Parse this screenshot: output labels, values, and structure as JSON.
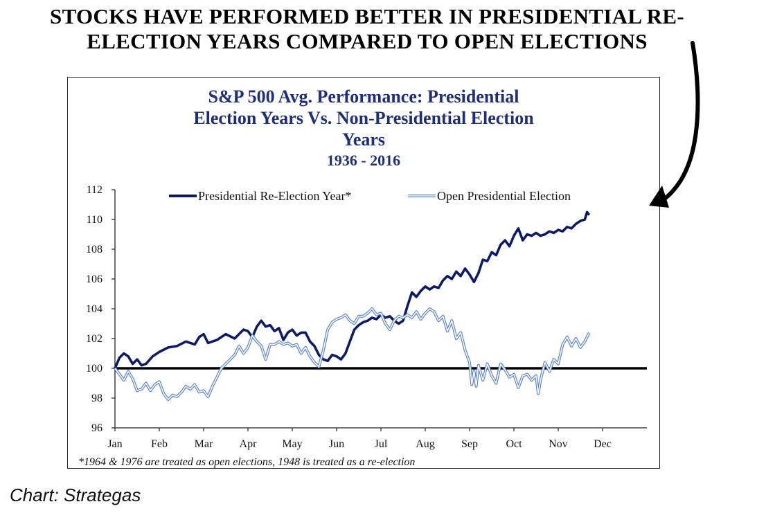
{
  "headline": {
    "line1": "STOCKS HAVE PERFORMED BETTER IN PRESIDENTIAL RE-",
    "line2": "ELECTION YEARS COMPARED TO OPEN ELECTIONS"
  },
  "source": "Chart: Strategas",
  "colors": {
    "reelection": "#0d1a66",
    "open": "#5a82d6",
    "baseline": "#000000",
    "title": "#1f2e78"
  },
  "chart_data": {
    "type": "line",
    "title_lines": [
      "S&P 500 Avg. Performance: Presidential",
      "Election Years Vs. Non-Presidential Election",
      "Years"
    ],
    "subtitle": "1936 - 2016",
    "footnote": "*1964 & 1976 are treated as open elections, 1948 is treated as a re-election",
    "xlabel": "",
    "ylabel": "",
    "ylim": [
      96,
      112
    ],
    "yticks": [
      96,
      98,
      100,
      102,
      104,
      106,
      108,
      110,
      112
    ],
    "xlim": [
      0,
      12
    ],
    "x_tick_labels": [
      "Jan",
      "Feb",
      "Mar",
      "Apr",
      "May",
      "Jun",
      "Jul",
      "Aug",
      "Sep",
      "Oct",
      "Nov",
      "Dec"
    ],
    "baseline": 100,
    "legend_position": "top",
    "series": [
      {
        "name": "Presidential Re-Election Year*",
        "style": "solid-thick",
        "points": [
          [
            0.0,
            100.0
          ],
          [
            0.1,
            100.7
          ],
          [
            0.2,
            101.0
          ],
          [
            0.3,
            100.8
          ],
          [
            0.4,
            100.3
          ],
          [
            0.5,
            100.6
          ],
          [
            0.6,
            100.2
          ],
          [
            0.7,
            100.3
          ],
          [
            0.85,
            100.8
          ],
          [
            1.0,
            101.1
          ],
          [
            1.2,
            101.4
          ],
          [
            1.4,
            101.5
          ],
          [
            1.6,
            101.8
          ],
          [
            1.8,
            101.6
          ],
          [
            1.9,
            102.1
          ],
          [
            2.0,
            102.3
          ],
          [
            2.1,
            101.7
          ],
          [
            2.3,
            101.9
          ],
          [
            2.5,
            102.3
          ],
          [
            2.7,
            102.0
          ],
          [
            2.9,
            102.6
          ],
          [
            3.0,
            102.5
          ],
          [
            3.1,
            102.1
          ],
          [
            3.2,
            102.8
          ],
          [
            3.3,
            103.2
          ],
          [
            3.4,
            102.8
          ],
          [
            3.5,
            102.9
          ],
          [
            3.6,
            102.5
          ],
          [
            3.7,
            102.7
          ],
          [
            3.8,
            101.9
          ],
          [
            3.9,
            102.4
          ],
          [
            4.0,
            102.6
          ],
          [
            4.1,
            102.2
          ],
          [
            4.2,
            102.4
          ],
          [
            4.3,
            102.4
          ],
          [
            4.4,
            101.8
          ],
          [
            4.5,
            101.5
          ],
          [
            4.6,
            100.9
          ],
          [
            4.7,
            100.6
          ],
          [
            4.8,
            100.5
          ],
          [
            4.9,
            100.9
          ],
          [
            5.0,
            100.8
          ],
          [
            5.1,
            100.6
          ],
          [
            5.2,
            101.0
          ],
          [
            5.3,
            101.8
          ],
          [
            5.4,
            102.6
          ],
          [
            5.5,
            102.9
          ],
          [
            5.6,
            103.1
          ],
          [
            5.7,
            103.2
          ],
          [
            5.8,
            103.4
          ],
          [
            5.9,
            103.3
          ],
          [
            6.0,
            103.6
          ],
          [
            6.1,
            103.4
          ],
          [
            6.2,
            103.5
          ],
          [
            6.3,
            103.2
          ],
          [
            6.4,
            103.0
          ],
          [
            6.5,
            103.2
          ],
          [
            6.6,
            104.2
          ],
          [
            6.7,
            105.1
          ],
          [
            6.8,
            104.8
          ],
          [
            6.9,
            105.2
          ],
          [
            7.0,
            105.5
          ],
          [
            7.1,
            105.3
          ],
          [
            7.2,
            105.5
          ],
          [
            7.3,
            105.4
          ],
          [
            7.4,
            105.9
          ],
          [
            7.5,
            106.2
          ],
          [
            7.6,
            106.0
          ],
          [
            7.7,
            106.5
          ],
          [
            7.8,
            106.2
          ],
          [
            7.9,
            106.7
          ],
          [
            8.0,
            106.3
          ],
          [
            8.1,
            105.8
          ],
          [
            8.2,
            106.4
          ],
          [
            8.3,
            107.3
          ],
          [
            8.4,
            107.2
          ],
          [
            8.5,
            107.8
          ],
          [
            8.6,
            107.6
          ],
          [
            8.7,
            108.3
          ],
          [
            8.8,
            108.6
          ],
          [
            8.9,
            108.2
          ],
          [
            9.0,
            108.9
          ],
          [
            9.1,
            109.4
          ],
          [
            9.2,
            108.6
          ],
          [
            9.3,
            109.0
          ],
          [
            9.4,
            108.9
          ],
          [
            9.5,
            109.1
          ],
          [
            9.6,
            108.9
          ],
          [
            9.7,
            109.0
          ],
          [
            9.8,
            109.2
          ],
          [
            9.9,
            109.1
          ],
          [
            10.0,
            109.3
          ],
          [
            10.1,
            109.2
          ],
          [
            10.2,
            109.5
          ],
          [
            10.3,
            109.4
          ],
          [
            10.4,
            109.7
          ],
          [
            10.5,
            109.9
          ],
          [
            10.6,
            110.0
          ],
          [
            10.65,
            110.5
          ],
          [
            10.7,
            110.3
          ]
        ]
      },
      {
        "name": "Open Presidential Election",
        "style": "double-light",
        "points": [
          [
            0.0,
            100.0
          ],
          [
            0.1,
            99.6
          ],
          [
            0.2,
            99.2
          ],
          [
            0.3,
            99.8
          ],
          [
            0.4,
            99.3
          ],
          [
            0.5,
            98.5
          ],
          [
            0.6,
            98.6
          ],
          [
            0.7,
            99.0
          ],
          [
            0.8,
            98.5
          ],
          [
            0.9,
            98.9
          ],
          [
            1.0,
            99.1
          ],
          [
            1.1,
            98.3
          ],
          [
            1.2,
            97.9
          ],
          [
            1.3,
            98.2
          ],
          [
            1.4,
            98.1
          ],
          [
            1.5,
            98.4
          ],
          [
            1.6,
            98.8
          ],
          [
            1.7,
            98.6
          ],
          [
            1.8,
            98.9
          ],
          [
            1.9,
            98.4
          ],
          [
            2.0,
            98.5
          ],
          [
            2.1,
            98.1
          ],
          [
            2.2,
            98.8
          ],
          [
            2.3,
            99.4
          ],
          [
            2.4,
            100.0
          ],
          [
            2.5,
            100.3
          ],
          [
            2.6,
            100.6
          ],
          [
            2.7,
            100.9
          ],
          [
            2.8,
            101.5
          ],
          [
            2.9,
            101.0
          ],
          [
            3.0,
            101.4
          ],
          [
            3.1,
            102.2
          ],
          [
            3.2,
            101.8
          ],
          [
            3.3,
            101.5
          ],
          [
            3.4,
            100.6
          ],
          [
            3.5,
            101.6
          ],
          [
            3.6,
            101.6
          ],
          [
            3.7,
            101.8
          ],
          [
            3.8,
            101.6
          ],
          [
            3.9,
            101.7
          ],
          [
            4.0,
            101.5
          ],
          [
            4.1,
            101.6
          ],
          [
            4.2,
            101.0
          ],
          [
            4.3,
            101.4
          ],
          [
            4.4,
            100.8
          ],
          [
            4.5,
            100.4
          ],
          [
            4.6,
            100.1
          ],
          [
            4.7,
            101.2
          ],
          [
            4.8,
            102.6
          ],
          [
            4.9,
            103.1
          ],
          [
            5.0,
            103.3
          ],
          [
            5.1,
            103.4
          ],
          [
            5.2,
            103.6
          ],
          [
            5.3,
            103.2
          ],
          [
            5.4,
            103.0
          ],
          [
            5.5,
            103.5
          ],
          [
            5.6,
            103.5
          ],
          [
            5.7,
            103.7
          ],
          [
            5.8,
            104.0
          ],
          [
            5.9,
            103.6
          ],
          [
            6.0,
            103.7
          ],
          [
            6.1,
            103.0
          ],
          [
            6.2,
            102.6
          ],
          [
            6.3,
            103.2
          ],
          [
            6.4,
            103.5
          ],
          [
            6.5,
            103.4
          ],
          [
            6.6,
            103.6
          ],
          [
            6.7,
            103.4
          ],
          [
            6.8,
            103.8
          ],
          [
            6.9,
            103.3
          ],
          [
            7.0,
            103.7
          ],
          [
            7.1,
            104.0
          ],
          [
            7.2,
            103.8
          ],
          [
            7.3,
            103.2
          ],
          [
            7.4,
            103.5
          ],
          [
            7.5,
            102.5
          ],
          [
            7.6,
            103.2
          ],
          [
            7.7,
            102.0
          ],
          [
            7.8,
            102.4
          ],
          [
            7.9,
            101.2
          ],
          [
            8.0,
            100.4
          ],
          [
            8.05,
            98.9
          ],
          [
            8.1,
            99.8
          ],
          [
            8.15,
            98.8
          ],
          [
            8.2,
            100.2
          ],
          [
            8.3,
            99.2
          ],
          [
            8.4,
            100.3
          ],
          [
            8.5,
            99.5
          ],
          [
            8.6,
            99.0
          ],
          [
            8.7,
            100.3
          ],
          [
            8.8,
            99.9
          ],
          [
            8.9,
            99.4
          ],
          [
            9.0,
            99.6
          ],
          [
            9.1,
            98.7
          ],
          [
            9.2,
            99.5
          ],
          [
            9.3,
            99.6
          ],
          [
            9.4,
            99.2
          ],
          [
            9.5,
            99.5
          ],
          [
            9.55,
            98.3
          ],
          [
            9.6,
            99.2
          ],
          [
            9.7,
            100.4
          ],
          [
            9.8,
            99.8
          ],
          [
            9.9,
            100.6
          ],
          [
            10.0,
            100.3
          ],
          [
            10.1,
            101.6
          ],
          [
            10.2,
            102.1
          ],
          [
            10.3,
            101.5
          ],
          [
            10.4,
            102.0
          ],
          [
            10.5,
            101.4
          ],
          [
            10.6,
            101.8
          ],
          [
            10.7,
            102.4
          ]
        ]
      }
    ]
  }
}
